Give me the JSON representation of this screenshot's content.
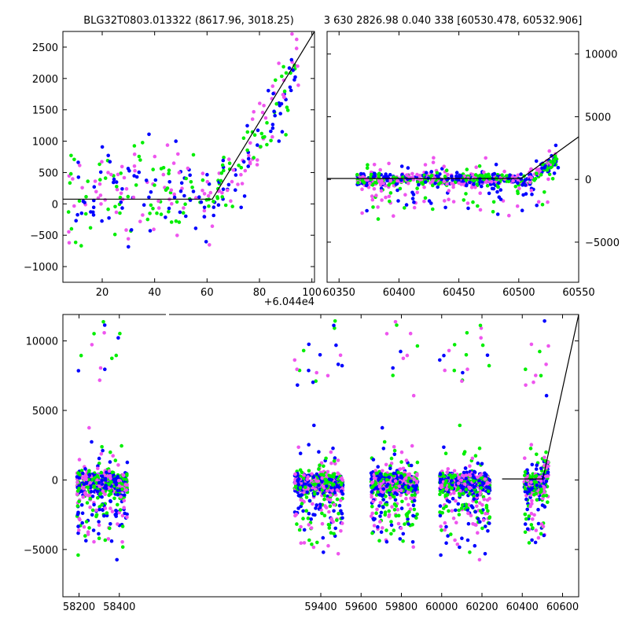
{
  "chart_data": [
    {
      "type": "scatter",
      "title": "BLG32T0803.013322 (8617.96, 3018.25)",
      "offset_label": "+6.044e4",
      "x_offset": 60440,
      "xlim": [
        5,
        101
      ],
      "ylim": [
        -1250,
        2750
      ],
      "xticks": [
        20,
        40,
        60,
        80,
        100
      ],
      "xtick_labels": [
        "20",
        "40",
        "60",
        "80",
        "100"
      ],
      "yticks": [
        -1000,
        -500,
        0,
        500,
        1000,
        1500,
        2000,
        2500
      ],
      "ytick_labels": [
        "−1000",
        "−500",
        "0",
        "500",
        "1000",
        "1500",
        "2000",
        "2500"
      ],
      "ytick_side": "left",
      "model_line": [
        [
          5,
          75
        ],
        [
          62,
          75
        ],
        [
          101,
          2750
        ]
      ],
      "colors": {
        "blue": "#0000ff",
        "green": "#00ee00",
        "magenta": "#ee55ee"
      },
      "grid": false
    },
    {
      "type": "scatter",
      "title": "3 630 2826.98 0.040 338 [60530.478, 60532.906]",
      "xlim": [
        60340,
        60550
      ],
      "ylim": [
        -8200,
        11800
      ],
      "xticks": [
        60350,
        60400,
        60450,
        60500,
        60550
      ],
      "xtick_labels": [
        "60350",
        "60400",
        "60450",
        "60500",
        "60550"
      ],
      "yticks": [
        -5000,
        0,
        5000,
        10000
      ],
      "ytick_labels": [
        "−5000",
        "0",
        "5000",
        "10000"
      ],
      "ytick_side": "right",
      "model_line": [
        [
          60340,
          75
        ],
        [
          60502,
          75
        ],
        [
          60550,
          3400
        ]
      ],
      "colors": {
        "blue": "#0000ff",
        "green": "#00ee00",
        "magenta": "#ee55ee"
      },
      "grid": false
    },
    {
      "type": "scatter",
      "title": "",
      "xlim": [
        58120,
        60680
      ],
      "ylim": [
        -8400,
        11900
      ],
      "xticks": [
        58200,
        58400,
        59400,
        59600,
        59800,
        60000,
        60200,
        60400,
        60600
      ],
      "xtick_labels": [
        "58200",
        "58400",
        "59400",
        "59600",
        "59800",
        "60000",
        "60200",
        "60400",
        "60600"
      ],
      "yticks": [
        -5000,
        0,
        5000,
        10000
      ],
      "ytick_labels": [
        "−5000",
        "0",
        "5000",
        "10000"
      ],
      "ytick_side": "left",
      "axis_break": "between 58400 and 59400",
      "seasons": [
        [
          58190,
          58440
        ],
        [
          59270,
          59510
        ],
        [
          59650,
          59880
        ],
        [
          59990,
          60240
        ],
        [
          60410,
          60530
        ]
      ],
      "model_line": [
        [
          60300,
          75
        ],
        [
          60502,
          75
        ],
        [
          60680,
          11900
        ]
      ],
      "colors": {
        "blue": "#0000ff",
        "green": "#00ee00",
        "magenta": "#ee55ee"
      },
      "grid": false
    }
  ]
}
